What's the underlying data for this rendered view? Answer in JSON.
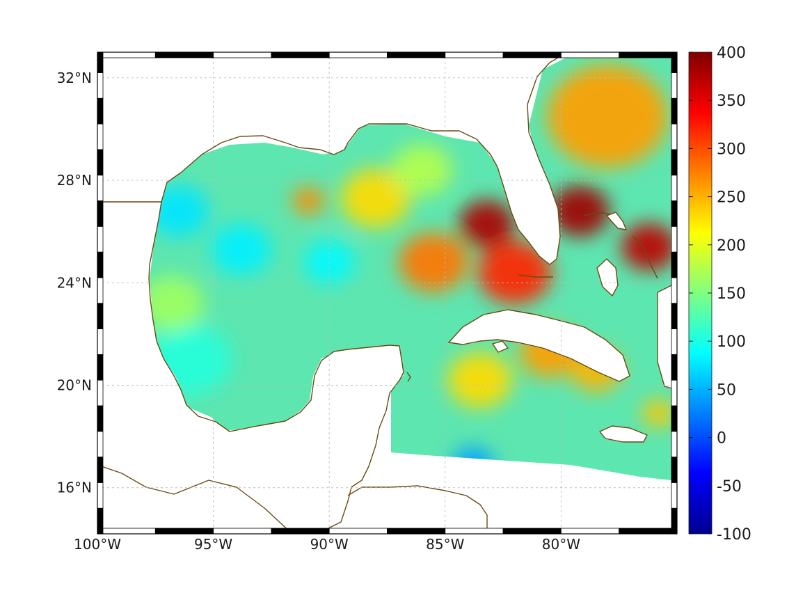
{
  "map": {
    "region": "Gulf of Mexico and Caribbean",
    "lon_range": [
      -100,
      -75
    ],
    "lat_range": [
      14.2,
      33
    ],
    "lon_ticks": [
      {
        "value": -100,
        "label": "100°W"
      },
      {
        "value": -95,
        "label": "95°W"
      },
      {
        "value": -90,
        "label": "90°W"
      },
      {
        "value": -85,
        "label": "85°W"
      },
      {
        "value": -80,
        "label": "80°W"
      }
    ],
    "lat_ticks": [
      {
        "value": 32,
        "label": "32°N"
      },
      {
        "value": 28,
        "label": "28°N"
      },
      {
        "value": 24,
        "label": "24°N"
      },
      {
        "value": 20,
        "label": "20°N"
      },
      {
        "value": 16,
        "label": "16°N"
      }
    ],
    "grid": true,
    "coastline_color": "#6b4a12",
    "colormap": "jet",
    "colorbar": {
      "min": -100,
      "max": 400,
      "ticks": [
        "400",
        "350",
        "300",
        "250",
        "200",
        "150",
        "100",
        "50",
        "0",
        "-50",
        "-100"
      ],
      "placement": "right"
    },
    "field_regions": [
      {
        "lon": -83.2,
        "lat": 26.3,
        "value": 380,
        "spread": 1.2
      },
      {
        "lon": -79.2,
        "lat": 26.8,
        "value": 385,
        "spread": 1.3
      },
      {
        "lon": -76.2,
        "lat": 25.4,
        "value": 370,
        "spread": 1.2
      },
      {
        "lon": -78.0,
        "lat": 30.5,
        "value": 260,
        "spread": 2.6
      },
      {
        "lon": -82.0,
        "lat": 24.4,
        "value": 320,
        "spread": 1.6
      },
      {
        "lon": -85.5,
        "lat": 24.8,
        "value": 280,
        "spread": 1.5
      },
      {
        "lon": -88.0,
        "lat": 27.3,
        "value": 230,
        "spread": 1.5
      },
      {
        "lon": -90.9,
        "lat": 27.2,
        "value": 270,
        "spread": 0.7
      },
      {
        "lon": -80.5,
        "lat": 21.3,
        "value": 260,
        "spread": 1.3
      },
      {
        "lon": -78.5,
        "lat": 20.6,
        "value": 250,
        "spread": 1.1
      },
      {
        "lon": -83.5,
        "lat": 20.2,
        "value": 230,
        "spread": 1.4
      },
      {
        "lon": -75.8,
        "lat": 18.9,
        "value": 240,
        "spread": 0.7
      },
      {
        "lon": -96.5,
        "lat": 26.8,
        "value": 75,
        "spread": 1.3
      },
      {
        "lon": -93.8,
        "lat": 25.3,
        "value": 80,
        "spread": 1.3
      },
      {
        "lon": -90.0,
        "lat": 24.8,
        "value": 85,
        "spread": 1.1
      },
      {
        "lon": -96.0,
        "lat": 21.0,
        "value": 105,
        "spread": 1.8
      },
      {
        "lon": -83.8,
        "lat": 16.9,
        "value": 40,
        "spread": 0.9
      },
      {
        "lon": -96.8,
        "lat": 23.2,
        "value": 165,
        "spread": 1.4
      },
      {
        "lon": -86.0,
        "lat": 28.4,
        "value": 175,
        "spread": 1.3
      }
    ]
  }
}
